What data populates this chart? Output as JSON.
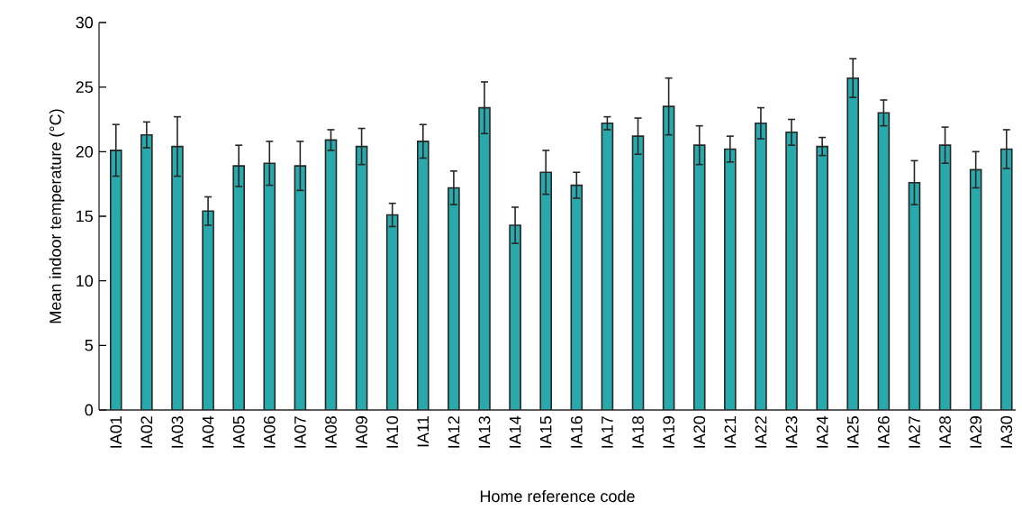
{
  "chart_data": {
    "type": "bar",
    "xlabel": "Home reference code",
    "ylabel": "Mean indoor temperature (°C)",
    "categories": [
      "IA01",
      "IA02",
      "IA03",
      "IA04",
      "IA05",
      "IA06",
      "IA07",
      "IA08",
      "IA09",
      "IA10",
      "IA11",
      "IA12",
      "IA13",
      "IA14",
      "IA15",
      "IA16",
      "IA17",
      "IA18",
      "IA19",
      "IA20",
      "IA21",
      "IA22",
      "IA23",
      "IA24",
      "IA25",
      "IA26",
      "IA27",
      "IA28",
      "IA29",
      "IA30"
    ],
    "values": [
      20.1,
      21.3,
      20.4,
      15.4,
      18.9,
      19.1,
      18.9,
      20.9,
      20.4,
      15.1,
      20.8,
      17.2,
      23.4,
      14.3,
      18.4,
      17.4,
      22.2,
      21.2,
      23.5,
      20.5,
      20.2,
      22.2,
      21.5,
      20.4,
      25.7,
      23.0,
      17.6,
      20.5,
      18.6,
      20.2
    ],
    "errors": [
      2.0,
      1.0,
      2.3,
      1.1,
      1.6,
      1.7,
      1.9,
      0.8,
      1.4,
      0.9,
      1.3,
      1.3,
      2.0,
      1.4,
      1.7,
      1.0,
      0.5,
      1.4,
      2.2,
      1.5,
      1.0,
      1.2,
      1.0,
      0.7,
      1.5,
      1.0,
      1.7,
      1.4,
      1.4,
      1.5
    ],
    "color": "#2aa9ad",
    "ylim": [
      0,
      30
    ],
    "yticks": [
      0,
      5,
      10,
      15,
      20,
      25,
      30
    ],
    "grid": false
  }
}
